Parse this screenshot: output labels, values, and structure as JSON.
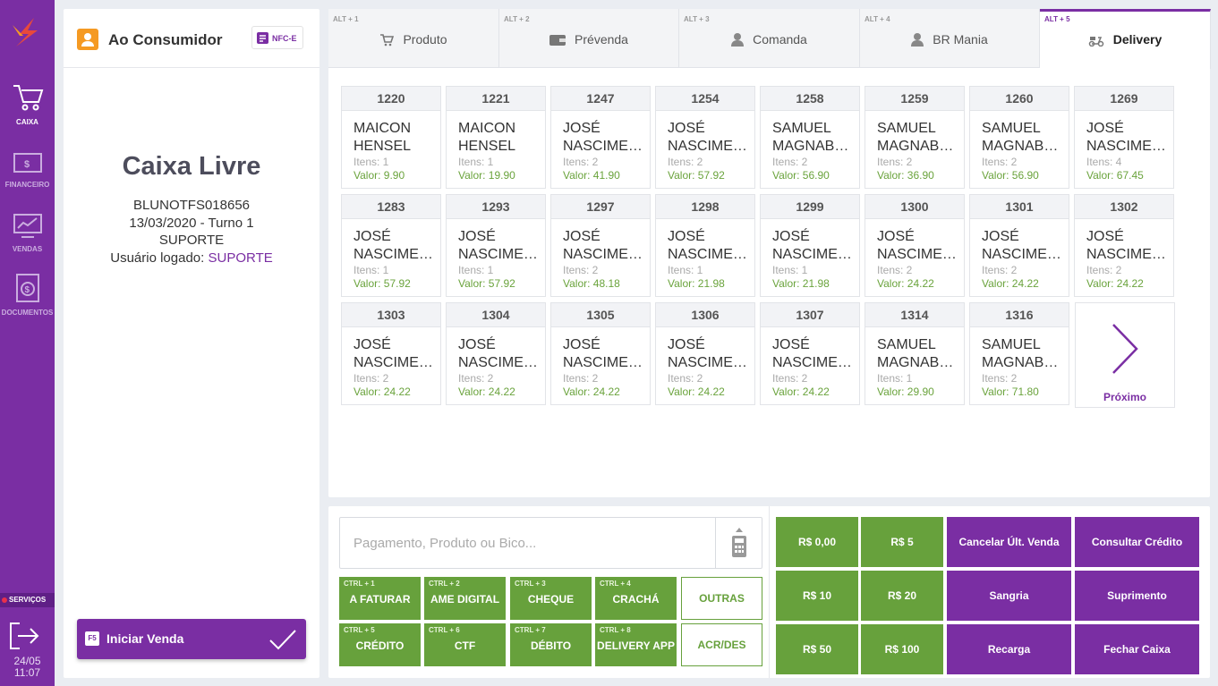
{
  "sidebar": {
    "items": [
      {
        "label": "CAIXA",
        "icon": "cart-icon"
      },
      {
        "label": "FINANCEIRO",
        "icon": "money-icon"
      },
      {
        "label": "VENDAS",
        "icon": "chart-monitor-icon"
      },
      {
        "label": "DOCUMENTOS",
        "icon": "document-dollar-icon"
      }
    ],
    "services_label": "SERVIÇOS",
    "date": "24/05",
    "time": "11:07"
  },
  "left_panel": {
    "customer": "Ao Consumidor",
    "nfce_label": "NFC-E",
    "status_title": "Caixa Livre",
    "terminal": "BLUNOTFS018656",
    "shift": "13/03/2020 - Turno 1",
    "operator": "SUPORTE",
    "logged_label": "Usuário logado:",
    "logged_user": "SUPORTE",
    "start_key": "F5",
    "start_label": "Iniciar Venda"
  },
  "tabs": [
    {
      "shortcut": "ALT + 1",
      "label": "Produto"
    },
    {
      "shortcut": "ALT + 2",
      "label": "Prévenda"
    },
    {
      "shortcut": "ALT + 3",
      "label": "Comanda"
    },
    {
      "shortcut": "ALT + 4",
      "label": "BR Mania"
    },
    {
      "shortcut": "ALT + 5",
      "label": "Delivery"
    }
  ],
  "orders": [
    {
      "id": "1220",
      "name1": "MAICON",
      "name2": "HENSEL",
      "items": "Itens: 1",
      "value": "Valor: 9.90"
    },
    {
      "id": "1221",
      "name1": "MAICON",
      "name2": "HENSEL",
      "items": "Itens: 1",
      "value": "Valor: 19.90"
    },
    {
      "id": "1247",
      "name1": "JOSÉ",
      "name2": "NASCIMENTO",
      "items": "Itens: 2",
      "value": "Valor: 41.90"
    },
    {
      "id": "1254",
      "name1": "JOSÉ",
      "name2": "NASCIMENTO",
      "items": "Itens: 2",
      "value": "Valor: 57.92"
    },
    {
      "id": "1258",
      "name1": "SAMUEL",
      "name2": "MAGNABOSCO",
      "items": "Itens: 2",
      "value": "Valor: 56.90"
    },
    {
      "id": "1259",
      "name1": "SAMUEL",
      "name2": "MAGNABOSCO",
      "items": "Itens: 2",
      "value": "Valor: 36.90"
    },
    {
      "id": "1260",
      "name1": "SAMUEL",
      "name2": "MAGNABOSCO",
      "items": "Itens: 2",
      "value": "Valor: 56.90"
    },
    {
      "id": "1269",
      "name1": "JOSÉ",
      "name2": "NASCIMENTO",
      "items": "Itens: 4",
      "value": "Valor: 67.45"
    },
    {
      "id": "1283",
      "name1": "JOSÉ",
      "name2": "NASCIMENTO",
      "items": "Itens: 1",
      "value": "Valor: 57.92"
    },
    {
      "id": "1293",
      "name1": "JOSÉ",
      "name2": "NASCIMENTO",
      "items": "Itens: 1",
      "value": "Valor: 57.92"
    },
    {
      "id": "1297",
      "name1": "JOSÉ",
      "name2": "NASCIMENTO",
      "items": "Itens: 2",
      "value": "Valor: 48.18"
    },
    {
      "id": "1298",
      "name1": "JOSÉ",
      "name2": "NASCIMENTO",
      "items": "Itens: 1",
      "value": "Valor: 21.98"
    },
    {
      "id": "1299",
      "name1": "JOSÉ",
      "name2": "NASCIMENTO",
      "items": "Itens: 1",
      "value": "Valor: 21.98"
    },
    {
      "id": "1300",
      "name1": "JOSÉ",
      "name2": "NASCIMENTO",
      "items": "Itens: 2",
      "value": "Valor: 24.22"
    },
    {
      "id": "1301",
      "name1": "JOSÉ",
      "name2": "NASCIMENTO",
      "items": "Itens: 2",
      "value": "Valor: 24.22"
    },
    {
      "id": "1302",
      "name1": "JOSÉ",
      "name2": "NASCIMENTO",
      "items": "Itens: 2",
      "value": "Valor: 24.22"
    },
    {
      "id": "1303",
      "name1": "JOSÉ",
      "name2": "NASCIMENTO",
      "items": "Itens: 2",
      "value": "Valor: 24.22"
    },
    {
      "id": "1304",
      "name1": "JOSÉ",
      "name2": "NASCIMENTO",
      "items": "Itens: 2",
      "value": "Valor: 24.22"
    },
    {
      "id": "1305",
      "name1": "JOSÉ",
      "name2": "NASCIMENTO",
      "items": "Itens: 2",
      "value": "Valor: 24.22"
    },
    {
      "id": "1306",
      "name1": "JOSÉ",
      "name2": "NASCIMENTO",
      "items": "Itens: 2",
      "value": "Valor: 24.22"
    },
    {
      "id": "1307",
      "name1": "JOSÉ",
      "name2": "NASCIMENTO",
      "items": "Itens: 2",
      "value": "Valor: 24.22"
    },
    {
      "id": "1314",
      "name1": "SAMUEL",
      "name2": "MAGNABOSCO",
      "items": "Itens: 1",
      "value": "Valor: 29.90"
    },
    {
      "id": "1316",
      "name1": "SAMUEL",
      "name2": "MAGNABOSCO",
      "items": "Itens: 2",
      "value": "Valor: 71.80"
    }
  ],
  "next_label": "Próximo",
  "search": {
    "placeholder": "Pagamento, Produto ou Bico...",
    "value": ""
  },
  "payment_buttons": [
    {
      "shortcut": "CTRL + 1",
      "label": "A FATURAR"
    },
    {
      "shortcut": "CTRL + 2",
      "label": "AME DIGITAL"
    },
    {
      "shortcut": "CTRL + 3",
      "label": "CHEQUE"
    },
    {
      "shortcut": "CTRL + 4",
      "label": "CRACHÁ"
    },
    {
      "shortcut": "CTRL + 5",
      "label": "CRÉDITO"
    },
    {
      "shortcut": "CTRL + 6",
      "label": "CTF"
    },
    {
      "shortcut": "CTRL + 7",
      "label": "DÉBITO"
    },
    {
      "shortcut": "CTRL + 8",
      "label": "DELIVERY APP"
    }
  ],
  "other_buttons": [
    "OUTRAS",
    "ACR/DES"
  ],
  "value_buttons": [
    "R$ 0,00",
    "R$ 5",
    "R$ 10",
    "R$ 20",
    "R$ 50",
    "R$ 100"
  ],
  "action_buttons": [
    "Cancelar Últ. Venda",
    "Consultar Crédito",
    "Sangria",
    "Suprimento",
    "Recarga",
    "Fechar Caixa"
  ],
  "colors": {
    "brand_purple": "#7a2ea3",
    "green": "#67a13c",
    "orange": "#f59a23"
  }
}
